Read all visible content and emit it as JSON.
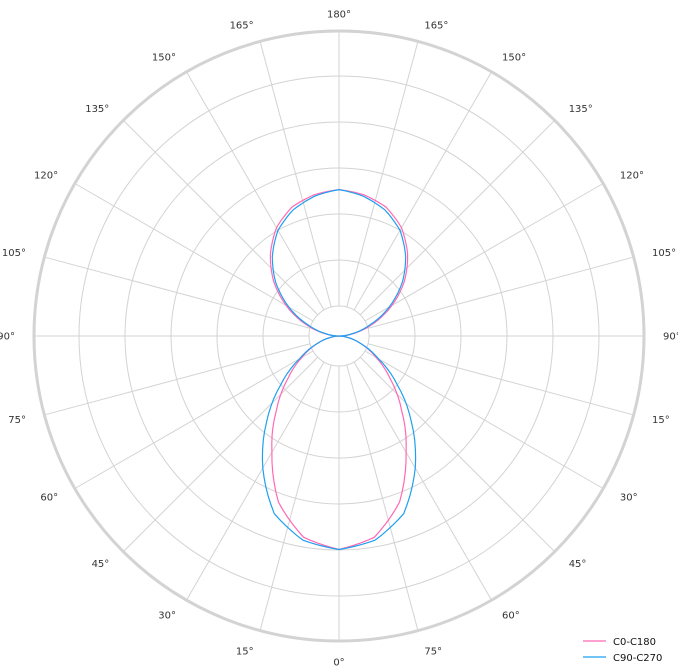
{
  "chart_data": {
    "type": "polar-line",
    "title": "",
    "angle_zero": "bottom",
    "angle_step_deg": 15,
    "angle_tick_labels_clockwise_from_top": [
      "180°",
      "165°",
      "150°",
      "135°",
      "120°",
      "105°",
      "90°",
      "15°",
      "30°",
      "45°",
      "60°",
      "75°",
      "0°",
      "15°",
      "30°",
      "45°",
      "60°",
      "75°",
      "90°",
      "105°",
      "120°",
      "135°",
      "150°",
      "165°"
    ],
    "r_max": 100,
    "radial_tick_labels": [],
    "grid": true,
    "legend_placement": "bottom-right",
    "gamma": [
      0,
      10,
      20,
      30,
      40,
      50,
      60,
      70,
      80,
      90,
      100,
      110,
      120,
      130,
      140,
      150,
      160,
      170,
      180
    ],
    "series": [
      {
        "name": "C0-C180",
        "color": "#ff69b4",
        "values": [
          70,
          67,
          58,
          44,
          32,
          22,
          14,
          8,
          3,
          0,
          5,
          12,
          20,
          28,
          35,
          41,
          45,
          47,
          48
        ]
      },
      {
        "name": "C90-C270",
        "color": "#1ea0f0",
        "values": [
          70,
          68,
          62,
          50,
          37,
          25,
          15,
          8,
          3,
          0,
          4.5,
          11,
          19,
          27,
          34,
          40,
          44,
          46.5,
          48
        ]
      }
    ]
  }
}
